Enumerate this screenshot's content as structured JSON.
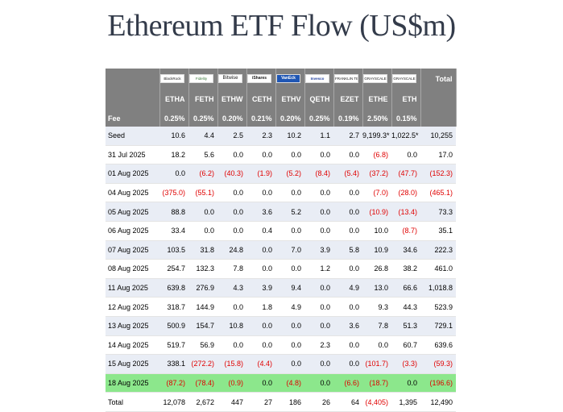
{
  "chart_data": {
    "type": "table",
    "title": "Ethereum ETF Flow (US$m)",
    "issuers": [
      {
        "name": "BlackRock",
        "icon": "blackrock-logo"
      },
      {
        "name": "Fidelity",
        "icon": "fidelity-logo"
      },
      {
        "name": "Bitwise",
        "icon": "bitwise-logo"
      },
      {
        "name": "iShares",
        "icon": "21shares-logo"
      },
      {
        "name": "VanEck",
        "icon": "vaneck-logo"
      },
      {
        "name": "Invesco",
        "icon": "invesco-logo"
      },
      {
        "name": "FRANKLIN TEMPLETON",
        "icon": "franklin-templeton-logo"
      },
      {
        "name": "GRAYSCALE",
        "icon": "grayscale-logo"
      },
      {
        "name": "GRAYSCALE",
        "icon": "grayscale-mini-logo"
      }
    ],
    "total_header": "Total",
    "tickers": [
      "ETHA",
      "FETH",
      "ETHW",
      "CETH",
      "ETHV",
      "QETH",
      "EZET",
      "ETHE",
      "ETH"
    ],
    "fee_label": "Fee",
    "fees": [
      "0.25%",
      "0.25%",
      "0.20%",
      "0.21%",
      "0.20%",
      "0.25%",
      "0.19%",
      "2.50%",
      "0.15%"
    ],
    "rows": [
      {
        "date": "Seed",
        "values": [
          "10.6",
          "4.4",
          "2.5",
          "2.3",
          "10.2",
          "1.1",
          "2.7",
          "9,199.3*",
          "1,022.5*"
        ],
        "total": "10,255"
      },
      {
        "date": "31 Jul 2025",
        "values": [
          "18.2",
          "5.6",
          "0.0",
          "0.0",
          "0.0",
          "0.0",
          "0.0",
          "(6.8)",
          "0.0"
        ],
        "total": "17.0"
      },
      {
        "date": "01 Aug 2025",
        "values": [
          "0.0",
          "(6.2)",
          "(40.3)",
          "(1.9)",
          "(5.2)",
          "(8.4)",
          "(5.4)",
          "(37.2)",
          "(47.7)"
        ],
        "total": "(152.3)"
      },
      {
        "date": "04 Aug 2025",
        "values": [
          "(375.0)",
          "(55.1)",
          "0.0",
          "0.0",
          "0.0",
          "0.0",
          "0.0",
          "(7.0)",
          "(28.0)"
        ],
        "total": "(465.1)"
      },
      {
        "date": "05 Aug 2025",
        "values": [
          "88.8",
          "0.0",
          "0.0",
          "3.6",
          "5.2",
          "0.0",
          "0.0",
          "(10.9)",
          "(13.4)"
        ],
        "total": "73.3"
      },
      {
        "date": "06 Aug 2025",
        "values": [
          "33.4",
          "0.0",
          "0.0",
          "0.4",
          "0.0",
          "0.0",
          "0.0",
          "10.0",
          "(8.7)"
        ],
        "total": "35.1"
      },
      {
        "date": "07 Aug 2025",
        "values": [
          "103.5",
          "31.8",
          "24.8",
          "0.0",
          "7.0",
          "3.9",
          "5.8",
          "10.9",
          "34.6"
        ],
        "total": "222.3"
      },
      {
        "date": "08 Aug 2025",
        "values": [
          "254.7",
          "132.3",
          "7.8",
          "0.0",
          "0.0",
          "1.2",
          "0.0",
          "26.8",
          "38.2"
        ],
        "total": "461.0"
      },
      {
        "date": "11 Aug 2025",
        "values": [
          "639.8",
          "276.9",
          "4.3",
          "3.9",
          "9.4",
          "0.0",
          "4.9",
          "13.0",
          "66.6"
        ],
        "total": "1,018.8"
      },
      {
        "date": "12 Aug 2025",
        "values": [
          "318.7",
          "144.9",
          "0.0",
          "1.8",
          "4.9",
          "0.0",
          "0.0",
          "9.3",
          "44.3"
        ],
        "total": "523.9"
      },
      {
        "date": "13 Aug 2025",
        "values": [
          "500.9",
          "154.7",
          "10.8",
          "0.0",
          "0.0",
          "0.0",
          "3.6",
          "7.8",
          "51.3"
        ],
        "total": "729.1"
      },
      {
        "date": "14 Aug 2025",
        "values": [
          "519.7",
          "56.9",
          "0.0",
          "0.0",
          "0.0",
          "2.3",
          "0.0",
          "0.0",
          "60.7"
        ],
        "total": "639.6"
      },
      {
        "date": "15 Aug 2025",
        "values": [
          "338.1",
          "(272.2)",
          "(15.8)",
          "(4.4)",
          "0.0",
          "0.0",
          "0.0",
          "(101.7)",
          "(3.3)"
        ],
        "total": "(59.3)"
      },
      {
        "date": "18 Aug 2025",
        "values": [
          "(87.2)",
          "(78.4)",
          "(0.9)",
          "0.0",
          "(4.8)",
          "0.0",
          "(6.6)",
          "(18.7)",
          "0.0"
        ],
        "total": "(196.6)",
        "highlight": true
      },
      {
        "date": "Total",
        "values": [
          "12,078",
          "2,672",
          "447",
          "27",
          "186",
          "26",
          "64",
          "(4,405)",
          "1,395"
        ],
        "total": "12,490",
        "is_total": true
      }
    ]
  },
  "colors": {
    "header_bg": "#808080",
    "stripe": "#e9edf5",
    "highlight": "#8ce78c",
    "negative": "#e00000"
  }
}
